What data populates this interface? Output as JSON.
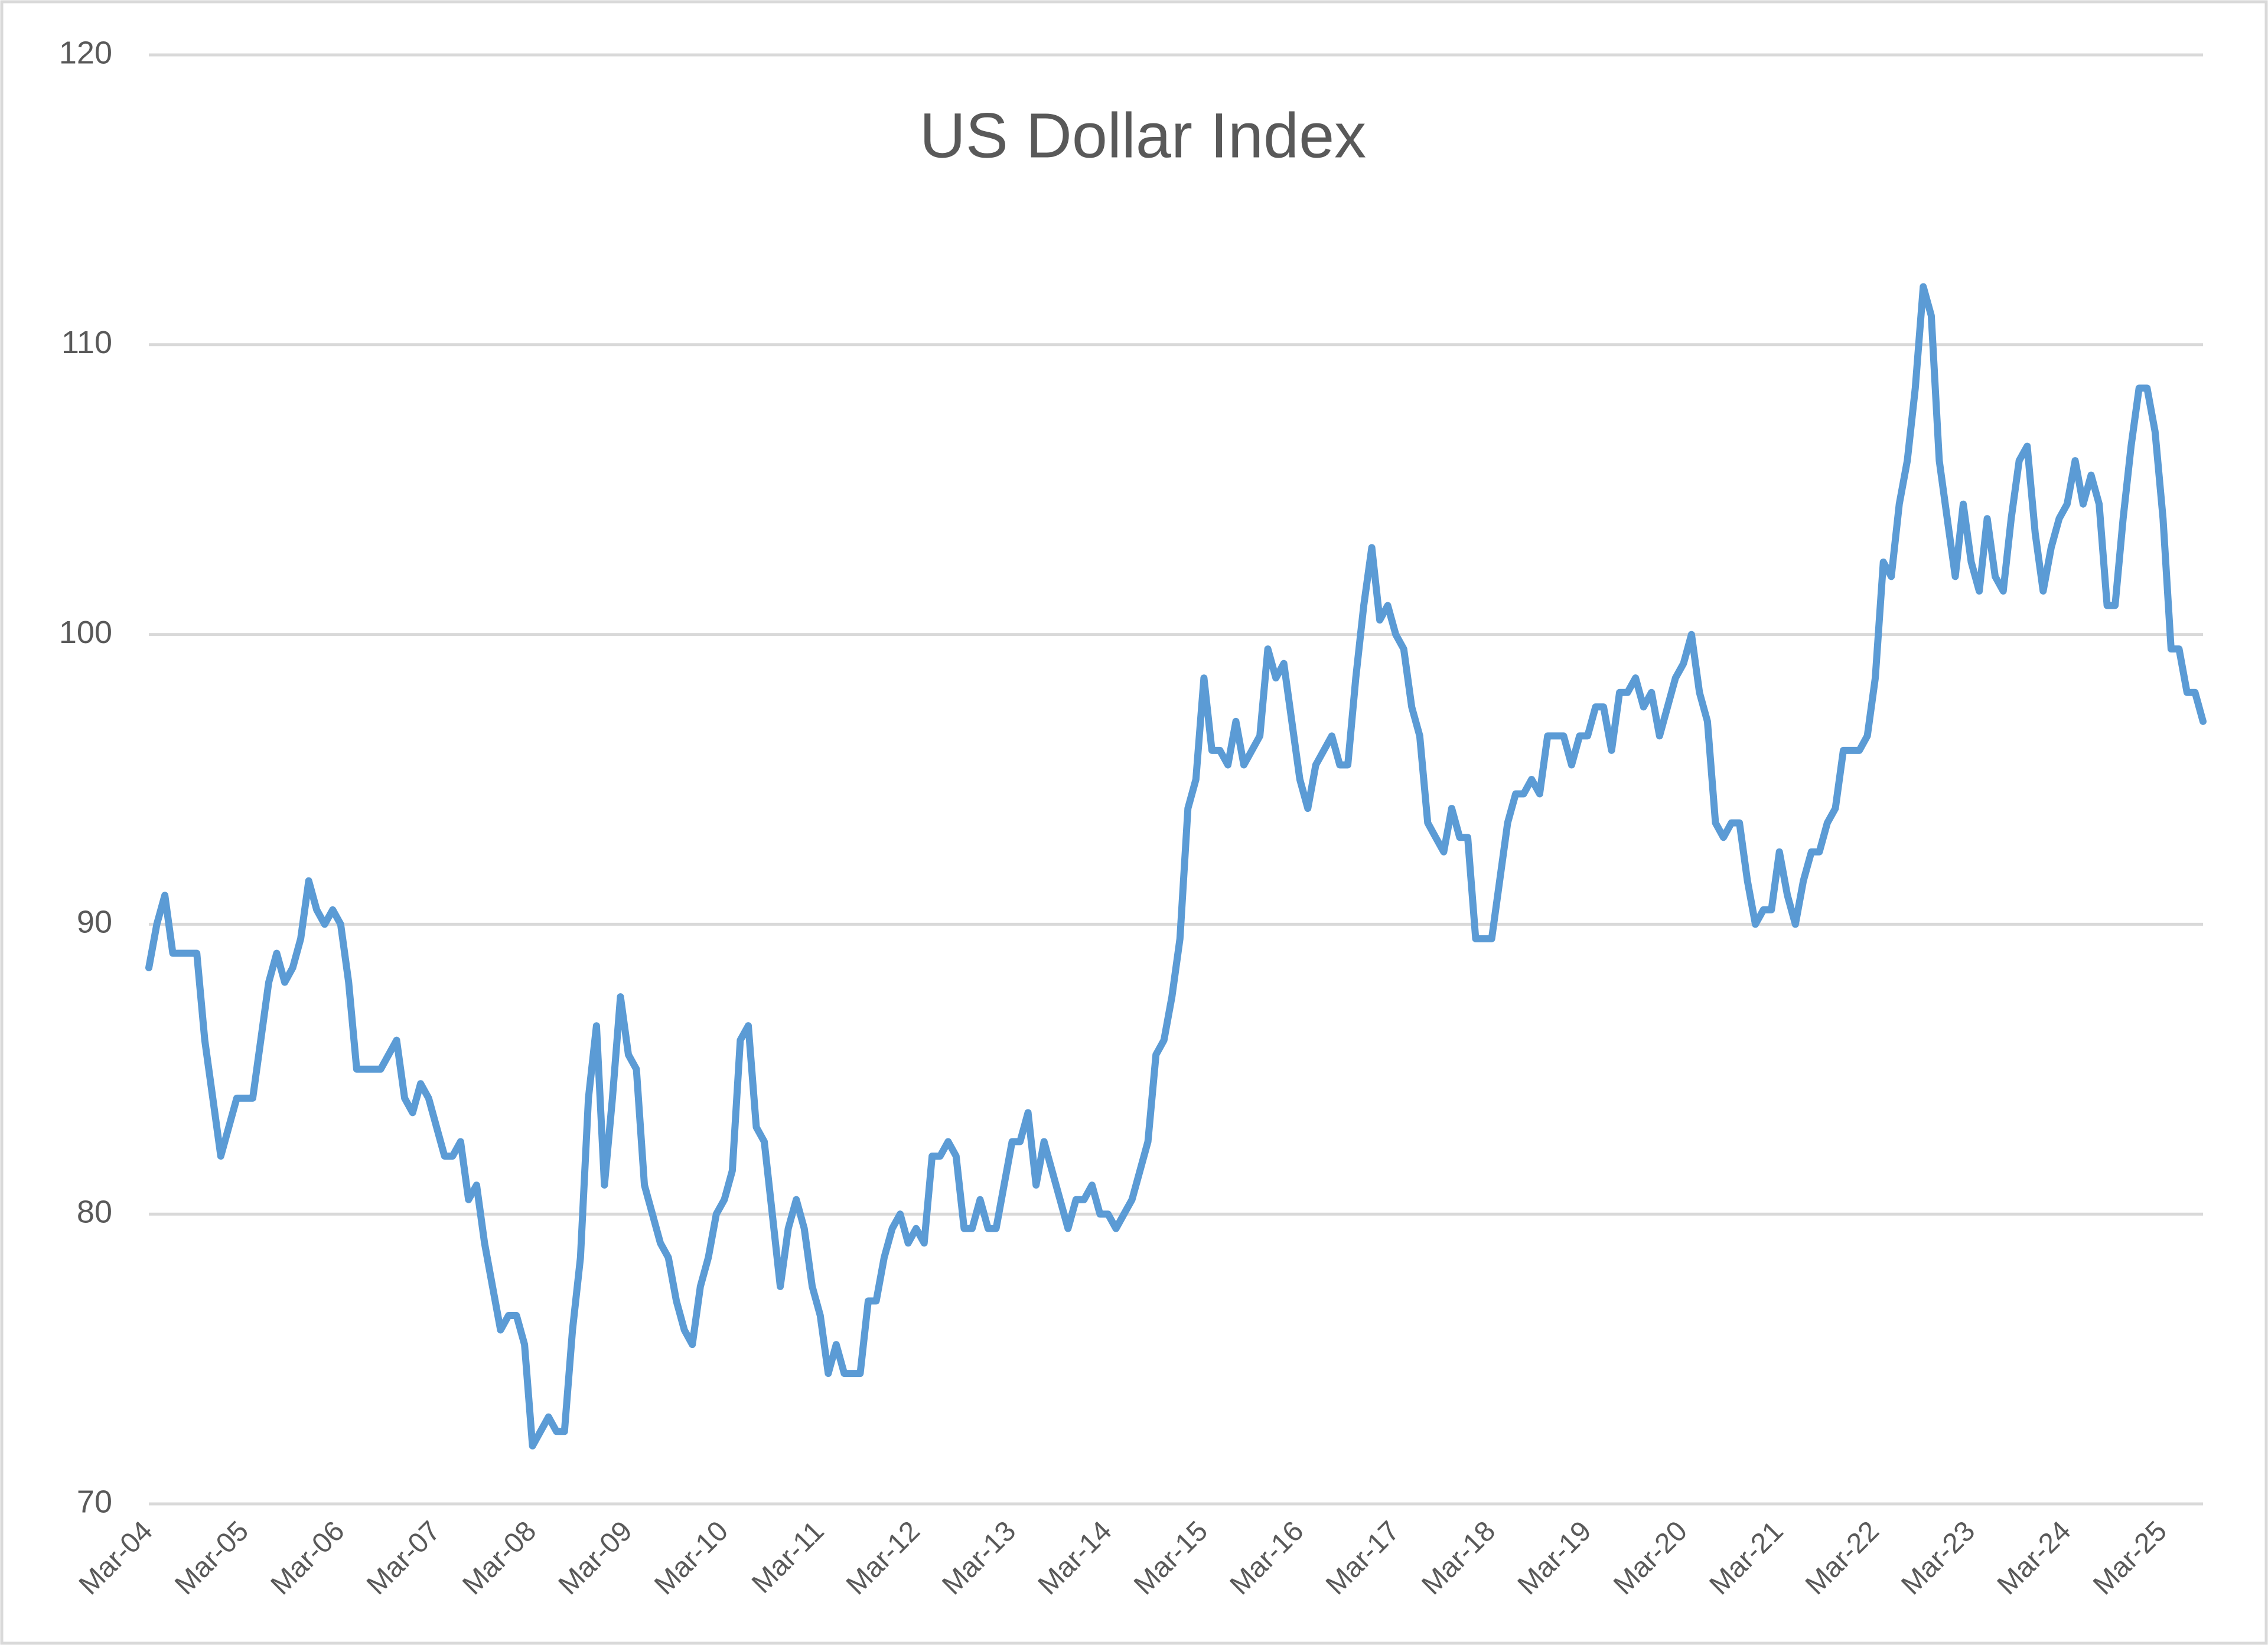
{
  "chart_data": {
    "type": "line",
    "title": "US Dollar Index",
    "categories": [
      "Mar-04",
      null,
      null,
      null,
      null,
      null,
      null,
      null,
      null,
      null,
      null,
      null,
      "Mar-05",
      null,
      null,
      null,
      null,
      null,
      null,
      null,
      null,
      null,
      null,
      null,
      "Mar-06",
      null,
      null,
      null,
      null,
      null,
      null,
      null,
      null,
      null,
      null,
      null,
      "Mar-07",
      null,
      null,
      null,
      null,
      null,
      null,
      null,
      null,
      null,
      null,
      null,
      "Mar-08",
      null,
      null,
      null,
      null,
      null,
      null,
      null,
      null,
      null,
      null,
      null,
      "Mar-09",
      null,
      null,
      null,
      null,
      null,
      null,
      null,
      null,
      null,
      null,
      null,
      "Mar-10",
      null,
      null,
      null,
      null,
      null,
      null,
      null,
      null,
      null,
      null,
      null,
      "Mar-11",
      null,
      null,
      null,
      null,
      null,
      null,
      null,
      null,
      null,
      null,
      null,
      "Mar-12",
      null,
      null,
      null,
      null,
      null,
      null,
      null,
      null,
      null,
      null,
      null,
      "Mar-13",
      null,
      null,
      null,
      null,
      null,
      null,
      null,
      null,
      null,
      null,
      null,
      "Mar-14",
      null,
      null,
      null,
      null,
      null,
      null,
      null,
      null,
      null,
      null,
      null,
      "Mar-15",
      null,
      null,
      null,
      null,
      null,
      null,
      null,
      null,
      null,
      null,
      null,
      "Mar-16",
      null,
      null,
      null,
      null,
      null,
      null,
      null,
      null,
      null,
      null,
      null,
      "Mar-17",
      null,
      null,
      null,
      null,
      null,
      null,
      null,
      null,
      null,
      null,
      null,
      "Mar-18",
      null,
      null,
      null,
      null,
      null,
      null,
      null,
      null,
      null,
      null,
      null,
      "Mar-19",
      null,
      null,
      null,
      null,
      null,
      null,
      null,
      null,
      null,
      null,
      null,
      "Mar-20",
      null,
      null,
      null,
      null,
      null,
      null,
      null,
      null,
      null,
      null,
      null,
      "Mar-21",
      null,
      null,
      null,
      null,
      null,
      null,
      null,
      null,
      null,
      null,
      null,
      "Mar-22",
      null,
      null,
      null,
      null,
      null,
      null,
      null,
      null,
      null,
      null,
      null,
      "Mar-23",
      null,
      null,
      null,
      null,
      null,
      null,
      null,
      null,
      null,
      null,
      null,
      "Mar-24",
      null,
      null,
      null,
      null,
      null,
      null,
      null,
      null,
      null,
      null,
      null,
      "Mar-25",
      null,
      null,
      null,
      null,
      null
    ],
    "values": [
      88.5,
      90,
      91,
      89,
      89,
      89,
      89,
      86,
      84,
      82,
      83,
      84,
      84,
      84,
      86,
      88,
      89,
      88,
      88.5,
      89.5,
      91.5,
      90.5,
      90,
      90.5,
      90,
      88,
      85,
      85,
      85,
      85,
      85.5,
      86,
      84,
      83.5,
      84.5,
      84,
      83,
      82,
      82,
      82.5,
      80.5,
      81,
      79,
      77.5,
      76,
      76.5,
      76.5,
      75.5,
      72,
      72.5,
      73,
      72.5,
      72.5,
      76,
      78.5,
      84,
      86.5,
      81,
      84,
      87.5,
      85.5,
      85,
      81,
      80,
      79,
      78.5,
      77,
      76,
      75.5,
      77.5,
      78.5,
      80,
      80.5,
      81.5,
      86,
      86.5,
      83,
      82.5,
      80,
      77.5,
      79.5,
      80.5,
      79.5,
      77.5,
      76.5,
      74.5,
      75.5,
      74.5,
      74.5,
      74.5,
      77,
      77,
      78.5,
      79.5,
      80,
      79,
      79.5,
      79,
      82,
      82,
      82.5,
      82,
      79.5,
      79.5,
      80.5,
      79.5,
      79.5,
      81,
      82.5,
      82.5,
      83.5,
      81,
      82.5,
      81.5,
      80.5,
      79.5,
      80.5,
      80.5,
      81,
      80,
      80,
      79.5,
      80,
      80.5,
      81.5,
      82.5,
      85.5,
      86,
      87.5,
      89.5,
      94,
      95,
      98.5,
      96,
      96,
      95.5,
      97,
      95.5,
      96,
      96.5,
      99.5,
      98.5,
      99,
      97,
      95,
      94,
      95.5,
      96,
      96.5,
      95.5,
      95.5,
      98.5,
      101,
      103,
      100.5,
      101,
      100,
      99.5,
      97.5,
      96.5,
      93.5,
      93,
      92.5,
      94,
      93,
      93,
      89.5,
      89.5,
      89.5,
      91.5,
      93.5,
      94.5,
      94.5,
      95,
      94.5,
      96.5,
      96.5,
      96.5,
      95.5,
      96.5,
      96.5,
      97.5,
      97.5,
      96,
      98,
      98,
      98.5,
      97.5,
      98,
      96.5,
      97.5,
      98.5,
      99,
      100,
      98,
      97,
      93.5,
      93,
      93.5,
      93.5,
      91.5,
      90,
      90.5,
      90.5,
      92.5,
      91,
      90,
      91.5,
      92.5,
      92.5,
      93.5,
      94,
      96,
      96,
      96,
      96.5,
      98.5,
      102.5,
      102,
      104.5,
      106,
      108.5,
      112,
      111,
      106,
      104,
      102,
      104.5,
      102.5,
      101.5,
      104,
      102,
      101.5,
      104,
      106,
      106.5,
      103.5,
      101.5,
      103,
      104,
      104.5,
      106,
      104.5,
      105.5,
      104.5,
      101,
      101,
      104,
      106.5,
      108.5,
      108.5,
      107,
      104,
      99.5,
      99.5,
      98,
      98,
      97
    ],
    "color": "#5b9bd5",
    "ylim": [
      70,
      120
    ],
    "yticks": [
      70,
      80,
      90,
      100,
      110,
      120
    ],
    "grid": true
  }
}
